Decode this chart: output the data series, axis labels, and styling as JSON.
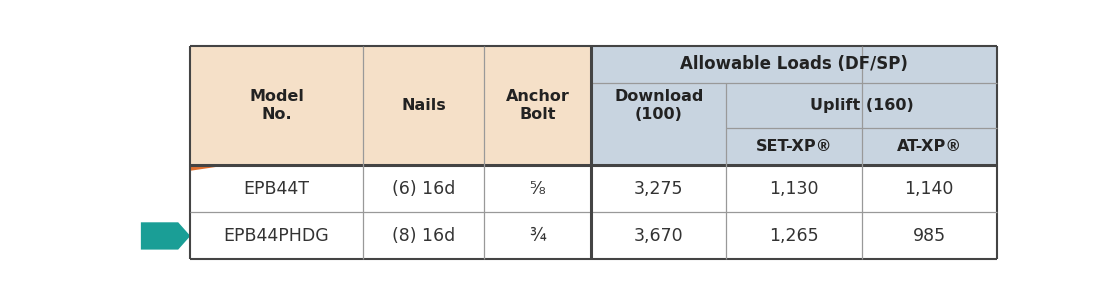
{
  "header_bg_left": "#f5e0c8",
  "header_bg_right": "#c8d4e0",
  "white": "#ffffff",
  "border_thin": "#999999",
  "border_thick": "#444444",
  "arrow_color": "#1a9e96",
  "triangle_color": "#e07030",
  "span_header": "Allowable Loads (DF/SP)",
  "uplift_header": "Uplift (160)",
  "download_header": "Download\n(100)",
  "model_header": "Model\nNo.",
  "nails_header": "Nails",
  "anchor_header": "Anchor\nBolt",
  "setxp_header": "SET-XP®",
  "atxp_header": "AT-XP®",
  "rows": [
    [
      "EPB44T",
      "(6) 16d",
      "⁵⁄₈",
      "3,275",
      "1,130",
      "1,140"
    ],
    [
      "EPB44PHDG",
      "(8) 16d",
      "¾",
      "3,670",
      "1,265",
      "985"
    ]
  ],
  "fig_width": 11.2,
  "fig_height": 3.02,
  "dpi": 100
}
